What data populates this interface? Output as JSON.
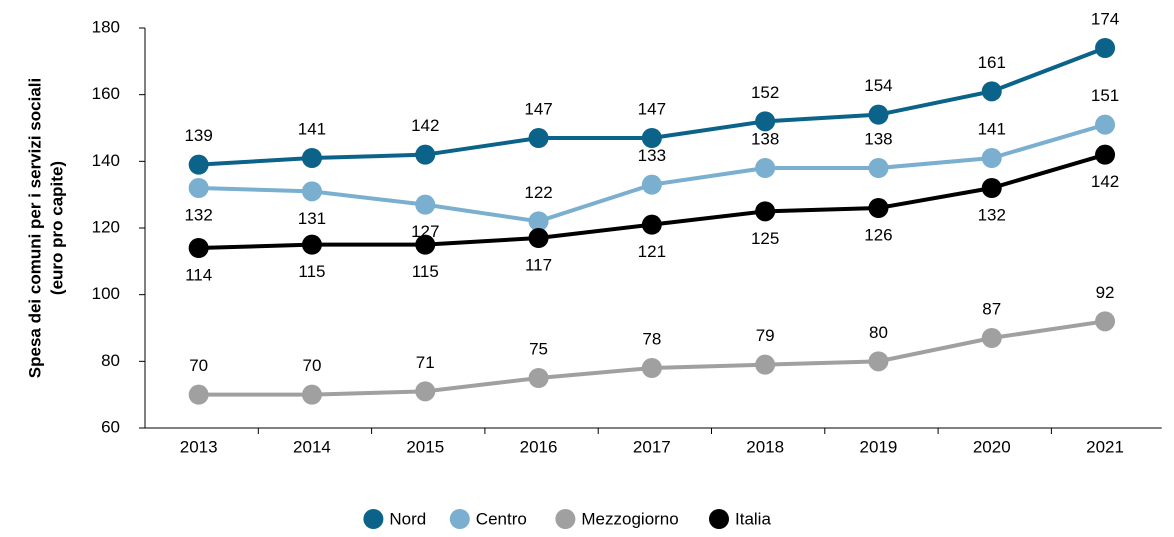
{
  "chart_data": {
    "type": "line",
    "ylabel": [
      "Spesa dei comuni per i servizi sociali",
      "(euro pro capite)"
    ],
    "categories": [
      "2013",
      "2014",
      "2015",
      "2016",
      "2017",
      "2018",
      "2019",
      "2020",
      "2021"
    ],
    "series": [
      {
        "name": "Nord",
        "color": "#0b6389",
        "values": [
          139,
          141,
          142,
          147,
          147,
          152,
          154,
          161,
          174
        ]
      },
      {
        "name": "Centro",
        "color": "#7aafcf",
        "values": [
          132,
          131,
          127,
          122,
          133,
          138,
          138,
          141,
          151
        ]
      },
      {
        "name": "Mezzogiorno",
        "color": "#a0a0a0",
        "values": [
          70,
          70,
          71,
          75,
          78,
          79,
          80,
          87,
          92
        ]
      },
      {
        "name": "Italia",
        "color": "#000000",
        "values": [
          114,
          115,
          115,
          117,
          121,
          125,
          126,
          132,
          142
        ]
      }
    ],
    "ylim": [
      60,
      180
    ],
    "yticks": [
      60,
      80,
      100,
      120,
      140,
      160,
      180
    ],
    "legend": "bottom"
  }
}
